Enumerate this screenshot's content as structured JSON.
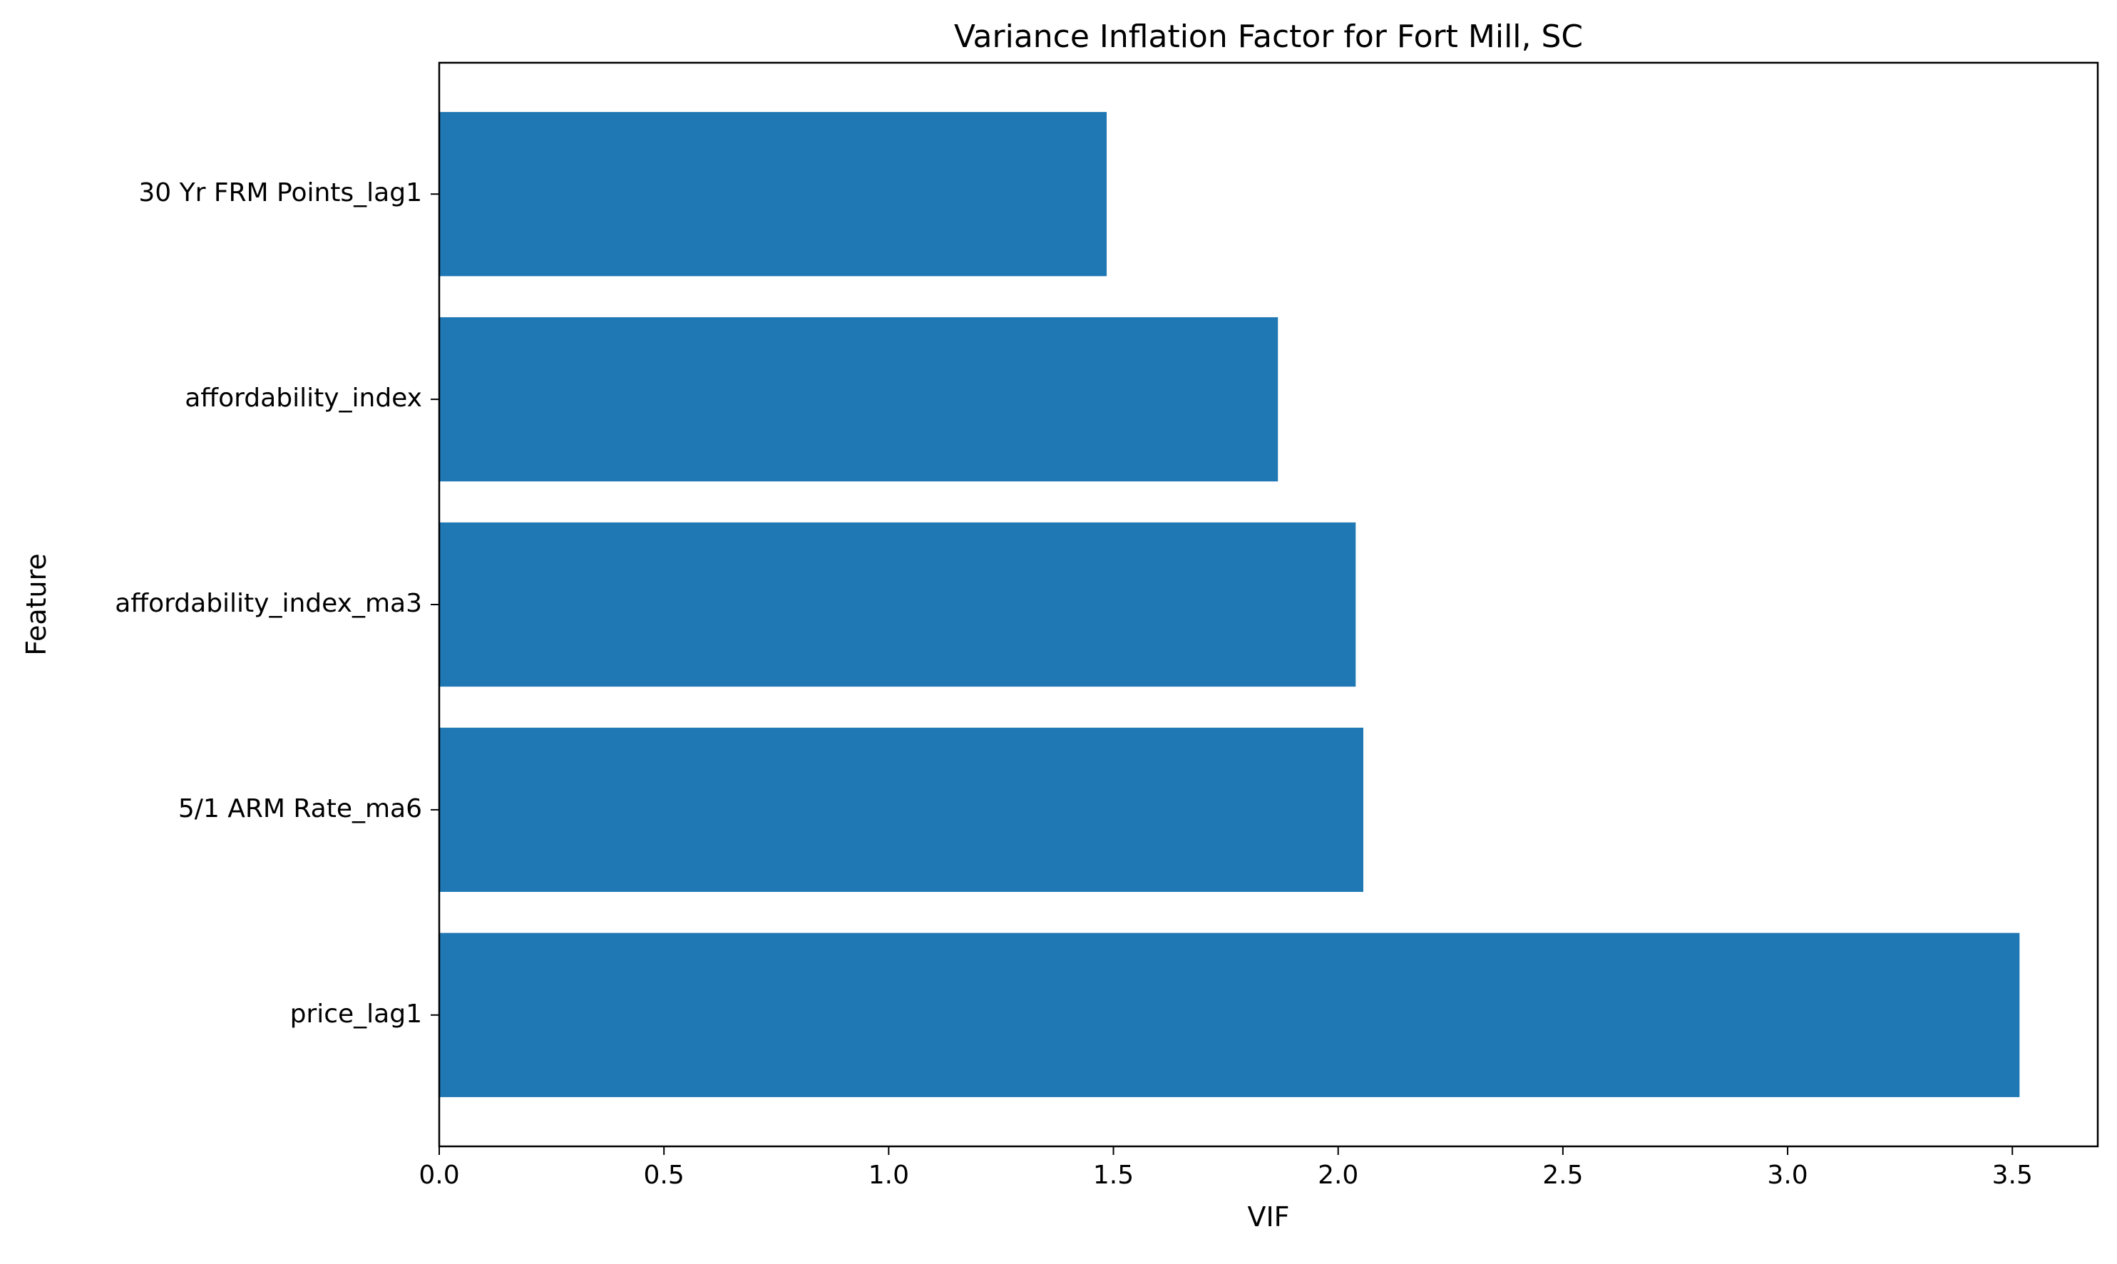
{
  "chart_data": {
    "type": "bar",
    "orientation": "horizontal",
    "title": "Variance Inflation Factor for Fort Mill, SC",
    "xlabel": "VIF",
    "ylabel": "Feature",
    "categories": [
      "30 Yr FRM Points_lag1",
      "affordability_index",
      "affordability_index_ma3",
      "5/1 ARM Rate_ma6",
      "price_lag1"
    ],
    "values": [
      1.485,
      1.866,
      2.039,
      2.056,
      3.516
    ],
    "xlim": [
      0,
      3.69
    ],
    "xticks": [
      "0.0",
      "0.5",
      "1.0",
      "1.5",
      "2.0",
      "2.5",
      "3.0",
      "3.5"
    ],
    "xtick_values": [
      0,
      0.5,
      1.0,
      1.5,
      2.0,
      2.5,
      3.0,
      3.5
    ],
    "grid": false,
    "legend": "none",
    "bar_color": "#1f77b4"
  }
}
